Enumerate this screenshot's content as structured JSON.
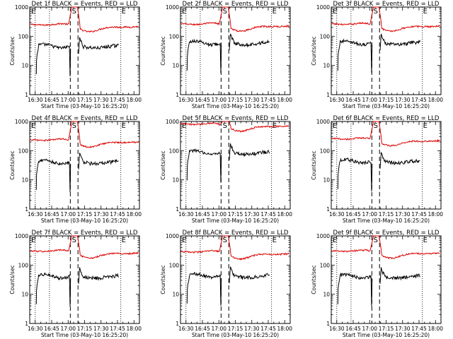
{
  "chart_data": {
    "type": "line",
    "layout": "3x3 grid of panels",
    "yscale": "log",
    "ylim": [
      1,
      1000
    ],
    "ytick_labels": [
      "1",
      "10",
      "100",
      "1000"
    ],
    "ylabel": "Counts/sec",
    "xlabel": "Start Time (03-May-10 16:25:20)",
    "xtick_labels": [
      "16:30",
      "16:45",
      "17:00",
      "17:15",
      "17:30",
      "17:45",
      "18:00"
    ],
    "xlim_minutes": [
      -5,
      95
    ],
    "xtick_minutes": [
      0,
      15,
      30,
      45,
      60,
      75,
      90
    ],
    "markers": {
      "saa_label": "S",
      "eclipse_label": "E",
      "eclipse_lines_minutes": [
        0,
        13,
        78
      ],
      "saa_lines_minutes": [
        32,
        39
      ]
    },
    "panels": [
      {
        "title": "Det 1f BLACK = Events, RED = LLD",
        "events_level": 42,
        "lld_level": 215
      },
      {
        "title": "Det 2f BLACK = Events, RED = LLD",
        "events_level": 55,
        "lld_level": 225
      },
      {
        "title": "Det 3f BLACK = Events, RED = LLD",
        "events_level": 55,
        "lld_level": 225
      },
      {
        "title": "Det 4f BLACK = Events, RED = LLD",
        "events_level": 38,
        "lld_level": 200
      },
      {
        "title": "Det 5f BLACK = Events, RED = LLD",
        "events_level": 80,
        "lld_level": 700
      },
      {
        "title": "Det 6f BLACK = Events, RED = LLD",
        "events_level": 40,
        "lld_level": 220
      },
      {
        "title": "Det 7f BLACK = Events, RED = LLD",
        "events_level": 38,
        "lld_level": 260
      },
      {
        "title": "Det 8f BLACK = Events, RED = LLD",
        "events_level": 40,
        "lld_level": 245
      },
      {
        "title": "Det 9f BLACK = Events, RED = LLD",
        "events_level": 38,
        "lld_level": 260
      }
    ],
    "colors": {
      "events": "#000000",
      "lld": "#dd0000"
    }
  }
}
